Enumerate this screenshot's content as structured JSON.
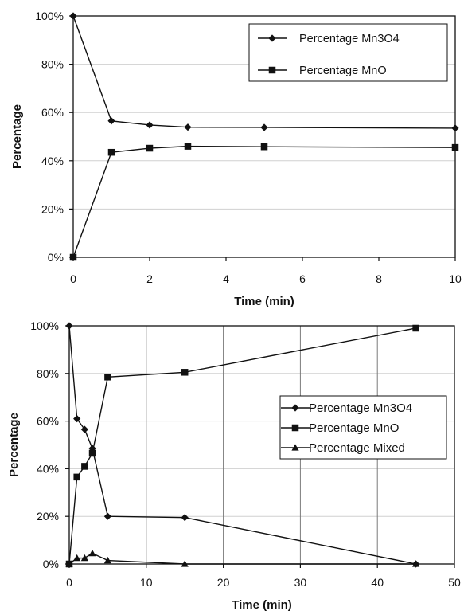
{
  "chart_data": [
    {
      "type": "line",
      "xlabel": "Time (min)",
      "ylabel": "Percentage",
      "xlim": [
        0,
        10
      ],
      "ylim": [
        0,
        100
      ],
      "x_ticks": [
        "0",
        "2",
        "4",
        "6",
        "8",
        "10"
      ],
      "y_ticks": [
        "0%",
        "20%",
        "40%",
        "60%",
        "80%",
        "100%"
      ],
      "grid": "horizontal",
      "legend_position": "top-right",
      "series": [
        {
          "name": "Percentage Mn3O4",
          "marker": "diamond",
          "x": [
            0,
            1,
            2,
            3,
            5,
            10
          ],
          "y": [
            100,
            56.5,
            54.8,
            53.9,
            53.8,
            53.5
          ]
        },
        {
          "name": "Percentage MnO",
          "marker": "square",
          "x": [
            0,
            1,
            2,
            3,
            5,
            10
          ],
          "y": [
            0,
            43.5,
            45.2,
            46.0,
            45.8,
            45.5
          ]
        }
      ]
    },
    {
      "type": "line",
      "xlabel": "Time (min)",
      "ylabel": "Percentage",
      "xlim": [
        0,
        50
      ],
      "ylim": [
        0,
        100
      ],
      "x_ticks": [
        "0",
        "10",
        "20",
        "30",
        "40",
        "50"
      ],
      "y_ticks": [
        "0%",
        "20%",
        "40%",
        "60%",
        "80%",
        "100%"
      ],
      "grid": "both",
      "legend_position": "right",
      "series": [
        {
          "name": "Percentage Mn3O4",
          "marker": "diamond",
          "x": [
            0,
            1,
            2,
            3,
            5,
            15,
            45
          ],
          "y": [
            100,
            61,
            56.5,
            48.5,
            20,
            19.5,
            0
          ]
        },
        {
          "name": "Percentage MnO",
          "marker": "square",
          "x": [
            0,
            1,
            2,
            3,
            5,
            15,
            45
          ],
          "y": [
            0,
            36.5,
            41,
            46.5,
            78.5,
            80.5,
            99
          ]
        },
        {
          "name": "Percentage Mixed",
          "marker": "triangle",
          "x": [
            0,
            1,
            2,
            3,
            5,
            15,
            45
          ],
          "y": [
            0,
            2.5,
            2.5,
            4.5,
            1.5,
            0,
            0
          ]
        }
      ]
    }
  ]
}
